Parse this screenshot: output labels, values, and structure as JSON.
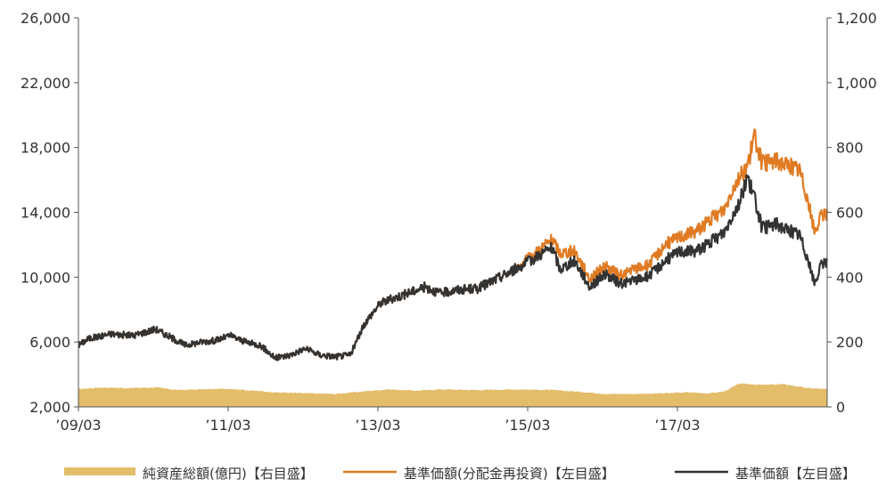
{
  "chart_data": {
    "type": "line",
    "title": "",
    "xlabel": "",
    "ylabel": "",
    "y_left": {
      "ylim": [
        2000,
        26000
      ],
      "ticks": [
        "26,000",
        "22,000",
        "18,000",
        "14,000",
        "10,000",
        "6,000",
        "2,000"
      ],
      "tick_values": [
        26000,
        22000,
        18000,
        14000,
        10000,
        6000,
        2000
      ]
    },
    "y_right": {
      "ylim": [
        0,
        1200
      ],
      "ticks": [
        "1,200",
        "1,000",
        "800",
        "600",
        "400",
        "200",
        "0"
      ],
      "tick_values": [
        1200,
        1000,
        800,
        600,
        400,
        200,
        0
      ]
    },
    "x_range": [
      2009.17,
      2019.17
    ],
    "x_ticks": [
      {
        "label": "’09/03",
        "year": 2009.17
      },
      {
        "label": "’11/03",
        "year": 2011.17
      },
      {
        "label": "’13/03",
        "year": 2013.17
      },
      {
        "label": "’15/03",
        "year": 2015.17
      },
      {
        "label": "’17/03",
        "year": 2017.17
      }
    ],
    "grid": false,
    "legend_position": "bottom",
    "series": [
      {
        "name": "純資産総額(億円)【右目盛】",
        "axis": "right",
        "kind": "area",
        "color": "#e3bd6a",
        "x": [
          2009.17,
          2009.5,
          2009.8,
          2010.2,
          2010.5,
          2010.8,
          2011.2,
          2011.5,
          2011.8,
          2012.2,
          2012.6,
          2013.0,
          2013.3,
          2013.7,
          2014.0,
          2014.5,
          2015.0,
          2015.5,
          2015.9,
          2016.2,
          2016.6,
          2017.0,
          2017.3,
          2017.6,
          2017.8,
          2018.0,
          2018.3,
          2018.6,
          2018.9,
          2019.17
        ],
        "y": [
          55,
          60,
          58,
          60,
          52,
          54,
          56,
          50,
          45,
          42,
          40,
          48,
          54,
          50,
          54,
          52,
          54,
          52,
          46,
          40,
          40,
          42,
          45,
          42,
          48,
          72,
          68,
          70,
          58,
          55
        ]
      },
      {
        "name": "基準価額(分配金再投資)【左目盛】",
        "axis": "left",
        "kind": "line",
        "color": "#e07b24",
        "x": [
          2009.17,
          2009.3,
          2009.6,
          2009.9,
          2010.2,
          2010.4,
          2010.6,
          2010.8,
          2011.0,
          2011.2,
          2011.4,
          2011.6,
          2011.8,
          2012.0,
          2012.2,
          2012.4,
          2012.6,
          2012.8,
          2013.0,
          2013.2,
          2013.5,
          2013.8,
          2014.0,
          2014.2,
          2014.5,
          2014.8,
          2015.0,
          2015.2,
          2015.4,
          2015.5,
          2015.6,
          2015.8,
          2016.0,
          2016.2,
          2016.4,
          2016.6,
          2016.8,
          2017.0,
          2017.2,
          2017.4,
          2017.6,
          2017.8,
          2017.9,
          2018.0,
          2018.1,
          2018.2,
          2018.3,
          2018.5,
          2018.6,
          2018.8,
          2018.9,
          2019.0,
          2019.1,
          2019.17
        ],
        "y": [
          5800,
          6200,
          6500,
          6400,
          6800,
          6300,
          5800,
          6000,
          6100,
          6400,
          6000,
          5800,
          5000,
          5200,
          5600,
          5200,
          5100,
          5200,
          7200,
          8400,
          8900,
          9400,
          9000,
          9200,
          9300,
          10000,
          10500,
          11200,
          12000,
          12300,
          11500,
          11600,
          9900,
          10700,
          10100,
          10500,
          10800,
          12000,
          12500,
          12800,
          13500,
          14200,
          15400,
          16200,
          16800,
          18700,
          17000,
          17200,
          17000,
          16600,
          15000,
          12800,
          13800,
          14000
        ]
      },
      {
        "name": "基準価額【左目盛】",
        "axis": "left",
        "kind": "line",
        "color": "#333333",
        "x": [
          2009.17,
          2009.3,
          2009.6,
          2009.9,
          2010.2,
          2010.4,
          2010.6,
          2010.8,
          2011.0,
          2011.2,
          2011.4,
          2011.6,
          2011.8,
          2012.0,
          2012.2,
          2012.4,
          2012.6,
          2012.8,
          2013.0,
          2013.2,
          2013.5,
          2013.8,
          2014.0,
          2014.2,
          2014.5,
          2014.8,
          2015.0,
          2015.2,
          2015.4,
          2015.5,
          2015.6,
          2015.8,
          2016.0,
          2016.2,
          2016.4,
          2016.6,
          2016.8,
          2017.0,
          2017.2,
          2017.4,
          2017.6,
          2017.8,
          2017.9,
          2018.0,
          2018.1,
          2018.2,
          2018.3,
          2018.5,
          2018.6,
          2018.8,
          2018.9,
          2019.0,
          2019.1,
          2019.17
        ],
        "y": [
          5800,
          6200,
          6500,
          6400,
          6800,
          6300,
          5800,
          6000,
          6100,
          6400,
          6000,
          5800,
          5000,
          5200,
          5600,
          5200,
          5100,
          5200,
          7200,
          8400,
          8900,
          9400,
          9000,
          9200,
          9300,
          10000,
          10500,
          11000,
          11600,
          11800,
          10500,
          11000,
          9400,
          10200,
          9600,
          9800,
          10100,
          11000,
          11600,
          11600,
          12100,
          12800,
          13800,
          14600,
          16200,
          14900,
          13000,
          13300,
          13000,
          12600,
          11300,
          9600,
          10800,
          11000
        ]
      }
    ]
  }
}
